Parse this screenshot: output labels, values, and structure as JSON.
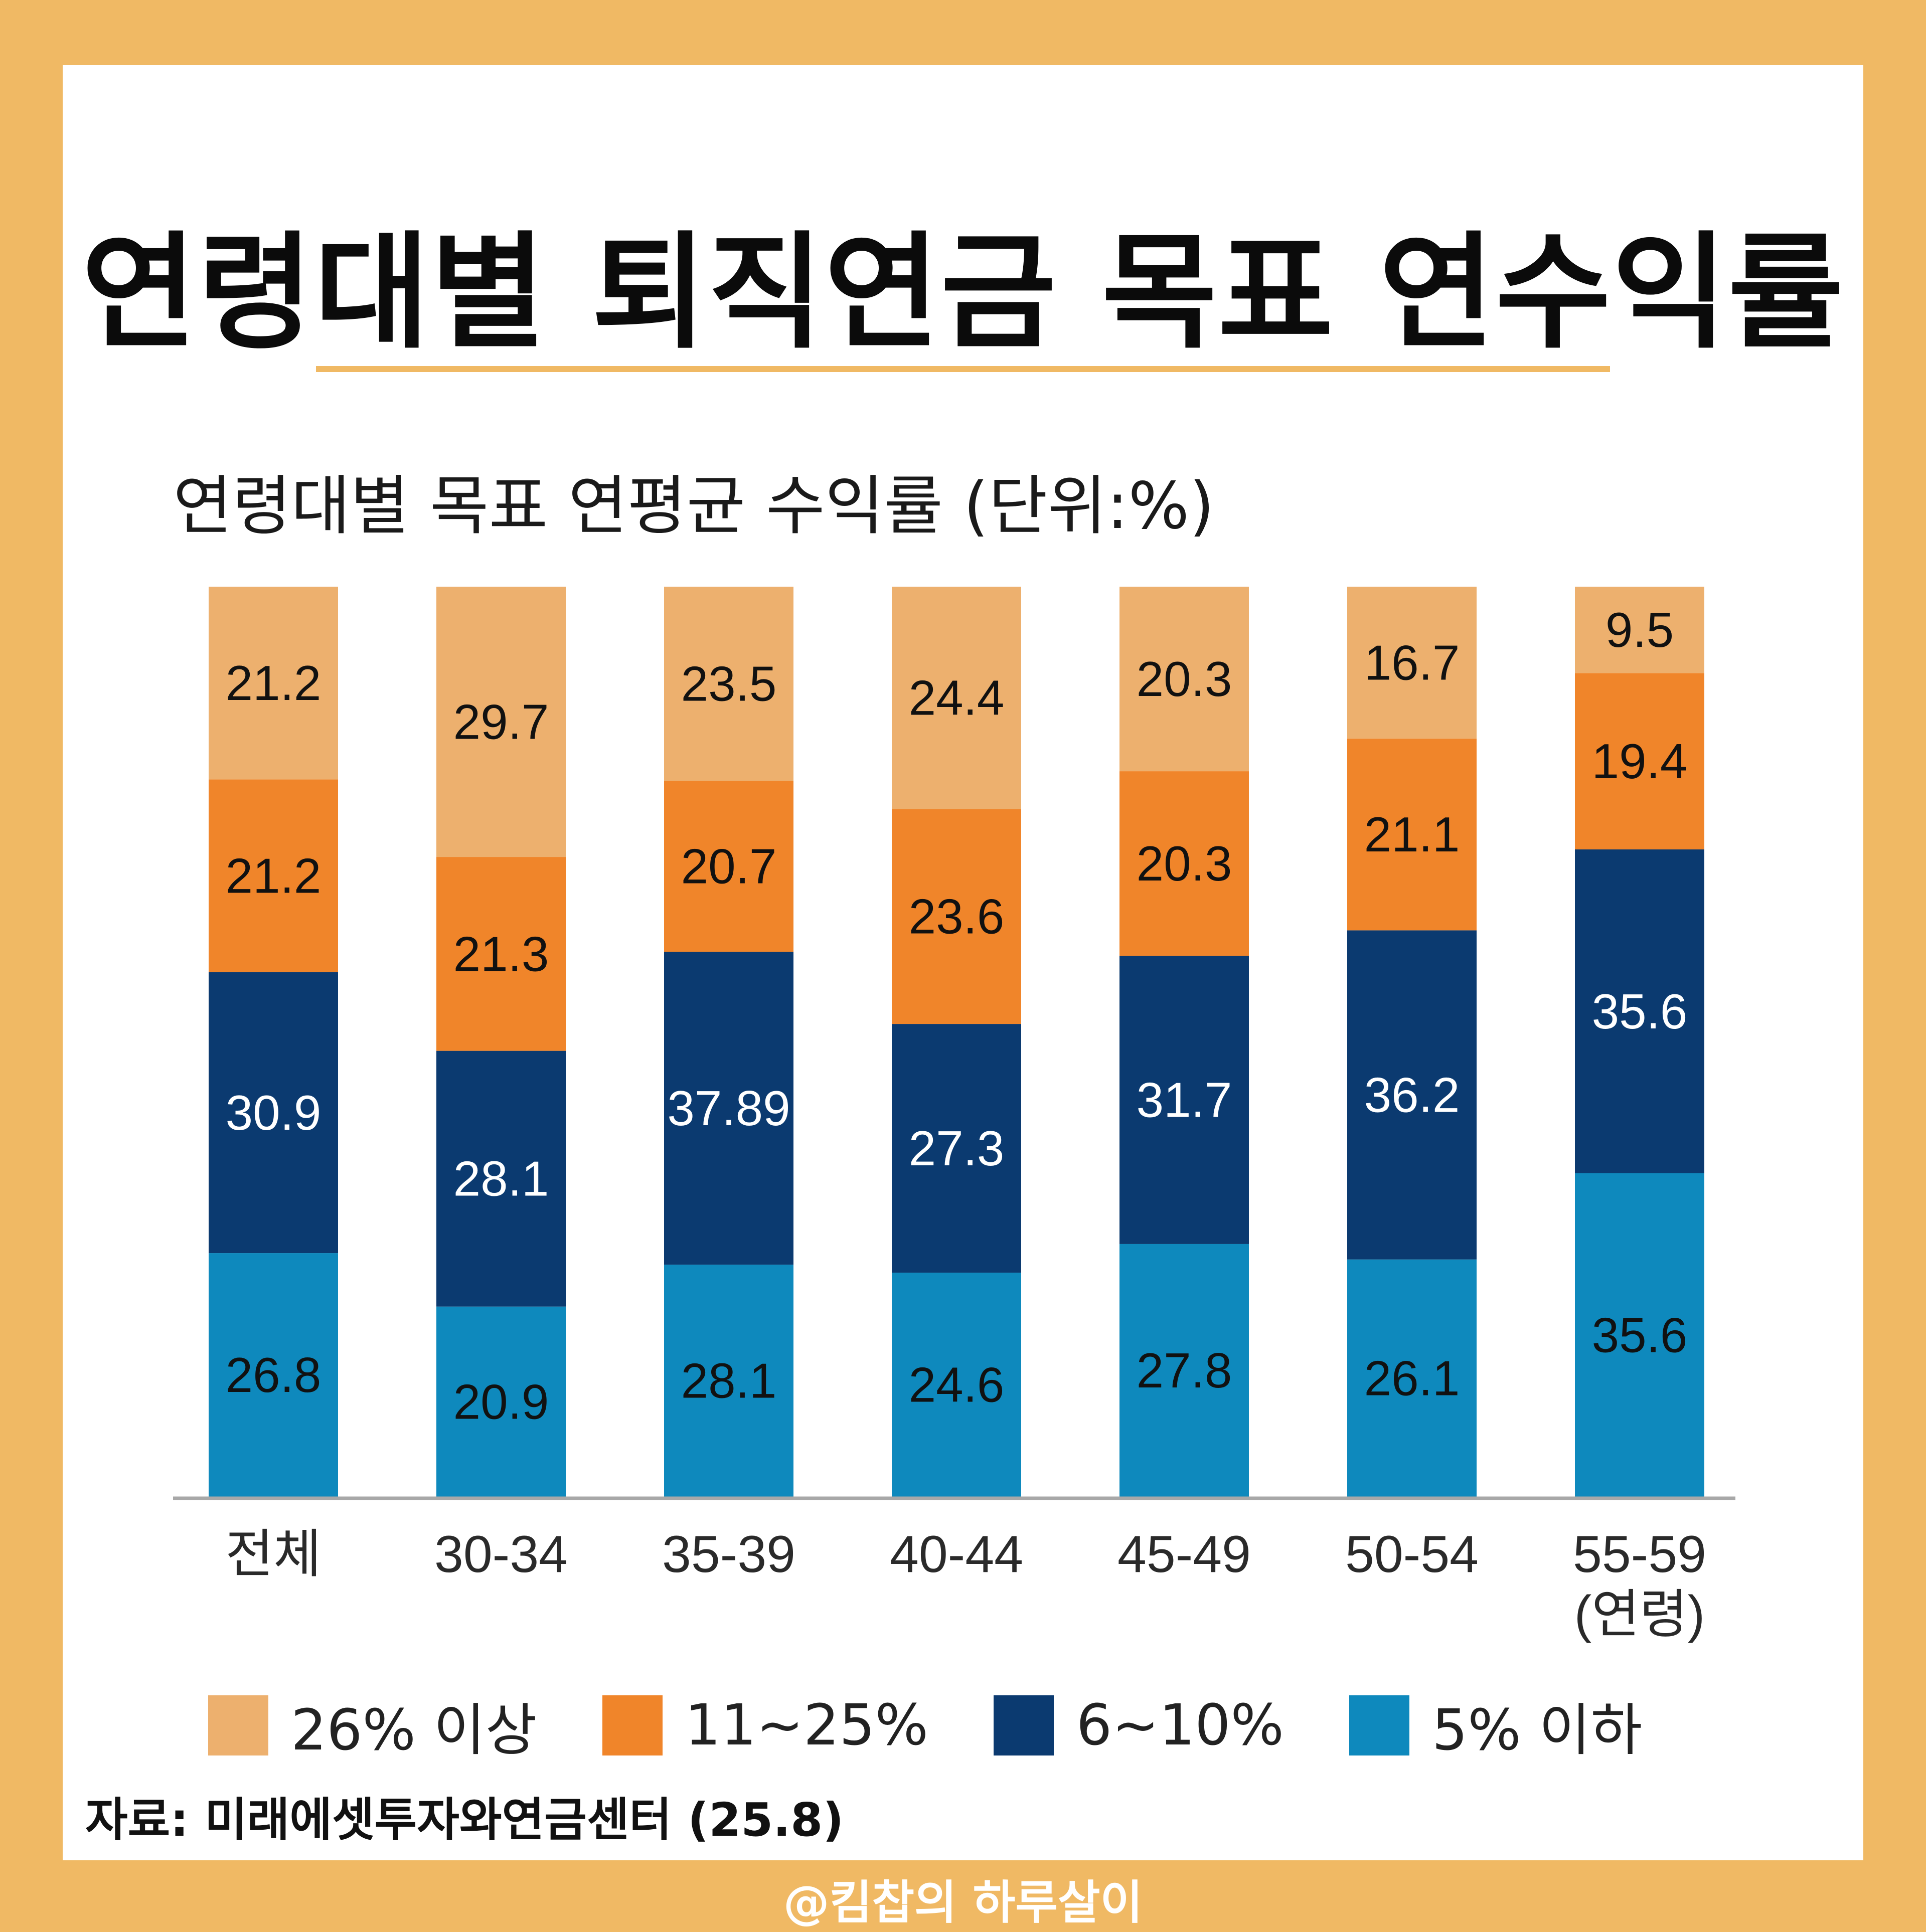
{
  "title": "연령대별 퇴직연금 목표 연수익률",
  "subtitle": "연령대별 목표 연평균 수익률 (단위:%)",
  "source": "자료: 미래에셋투자와연금센터 (25.8)",
  "watermark": "@킴찹의 하루살이",
  "colors": {
    "background": "#F0B964",
    "accent_rule": "#F0B964",
    "series_26_plus": "#EDB06E",
    "series_11_25": "#F0852A",
    "series_6_10": "#0B3A70",
    "series_5_less": "#0E89BD"
  },
  "chart_data": {
    "type": "bar",
    "stacked": true,
    "categories": [
      "전체",
      "30-34",
      "35-39",
      "40-44",
      "45-49",
      "50-54",
      "55-59"
    ],
    "x_unit_label": "(연령)",
    "series": [
      {
        "name": "5% 이하",
        "values": [
          26.8,
          20.9,
          28.1,
          24.6,
          27.8,
          26.1,
          35.6
        ],
        "label_color": "#111111"
      },
      {
        "name": "6~10%",
        "values": [
          30.9,
          28.1,
          37.89,
          27.3,
          31.7,
          36.2,
          35.6
        ],
        "label_color": "#FFFFFF"
      },
      {
        "name": "11~25%",
        "values": [
          21.2,
          21.3,
          20.7,
          23.6,
          20.3,
          21.1,
          19.4
        ],
        "label_color": "#111111"
      },
      {
        "name": "26% 이상",
        "values": [
          21.2,
          29.7,
          23.5,
          24.4,
          20.3,
          16.7,
          9.5
        ],
        "label_color": "#111111"
      }
    ],
    "legend": [
      "26% 이상",
      "11~25%",
      "6~10%",
      "5% 이하"
    ],
    "legend_position": "bottom"
  }
}
